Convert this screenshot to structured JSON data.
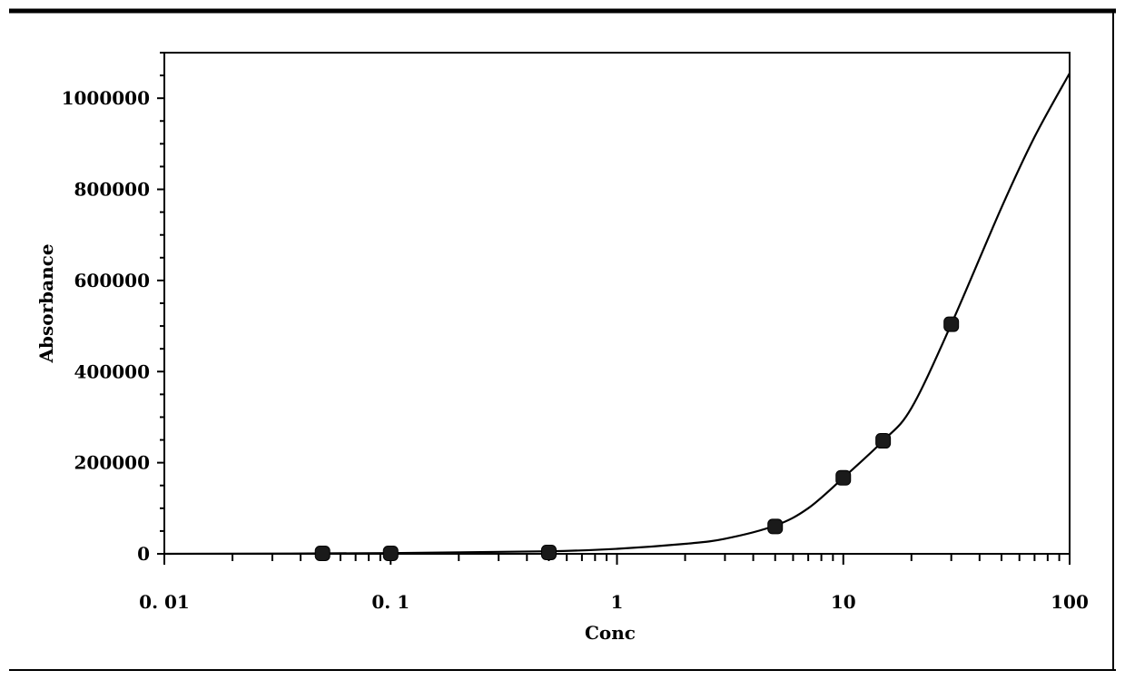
{
  "chart_data": {
    "type": "scatter",
    "title": "",
    "xlabel": "Conc",
    "ylabel": "Absorbance",
    "x_scale": "log",
    "xlim": [
      0.01,
      100
    ],
    "ylim": [
      0,
      1100000
    ],
    "x_ticks": [
      0.01,
      0.1,
      1,
      10,
      100
    ],
    "x_tick_labels": [
      "0. 01",
      "0. 1",
      "1",
      "10",
      "100"
    ],
    "y_ticks": [
      0,
      200000,
      400000,
      600000,
      800000,
      1000000
    ],
    "y_tick_labels": [
      "0",
      "200000",
      "400000",
      "600000",
      "800000",
      "1000000"
    ],
    "grid": false,
    "series": [
      {
        "kind": "points",
        "marker": "square",
        "x": [
          0.05,
          0.1,
          0.5,
          5,
          10,
          15,
          30
        ],
        "y": [
          1000,
          1000,
          3000,
          60000,
          167000,
          248000,
          504000
        ]
      },
      {
        "kind": "fitted-curve",
        "x": [
          0.01,
          0.1,
          0.5,
          1,
          2,
          3,
          5,
          7,
          10,
          15,
          20,
          30,
          50,
          70,
          100
        ],
        "y": [
          0,
          1500,
          5500,
          11000,
          22000,
          33000,
          62000,
          100000,
          167000,
          248000,
          320000,
          504000,
          760000,
          915000,
          1055000
        ]
      }
    ],
    "colors": {
      "axis": "#000000",
      "line": "#000000",
      "marker": "#1a1a1a",
      "border": "#000000"
    }
  }
}
